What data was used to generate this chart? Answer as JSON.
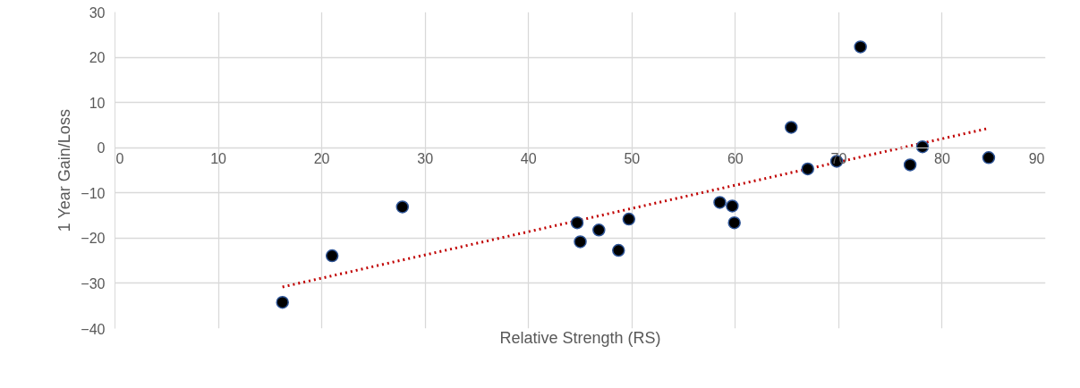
{
  "chart_data": {
    "type": "scatter",
    "xlabel": "Relative Strength (RS)",
    "ylabel": "1 Year Gain/Loss",
    "xlim": [
      0,
      90
    ],
    "ylim": [
      -40,
      30
    ],
    "xticks": [
      0,
      10,
      20,
      30,
      40,
      50,
      60,
      70,
      80,
      90
    ],
    "yticks": [
      -40,
      -30,
      -20,
      -10,
      0,
      10,
      20,
      30
    ],
    "grid": true,
    "marker": "circle",
    "series": [
      {
        "color": "#000000",
        "x": [
          16.2,
          21.0,
          27.8,
          44.7,
          45.0,
          46.8,
          48.7,
          49.7,
          58.5,
          59.7,
          59.9,
          65.4,
          67.0,
          69.8,
          72.1,
          76.9,
          78.1,
          84.5
        ],
        "values": [
          -34.2,
          -23.9,
          -13.1,
          -16.6,
          -20.8,
          -18.2,
          -22.7,
          -15.8,
          -12.1,
          -12.9,
          -16.6,
          4.5,
          -4.7,
          -3.0,
          22.3,
          -3.8,
          0.2,
          -2.2
        ]
      },
      {
        "type": "line",
        "color": "#c00000",
        "line_style": "dotted",
        "marker": "none",
        "x": [
          16.2,
          84.5
        ],
        "values": [
          -30.8,
          4.3
        ]
      }
    ]
  }
}
